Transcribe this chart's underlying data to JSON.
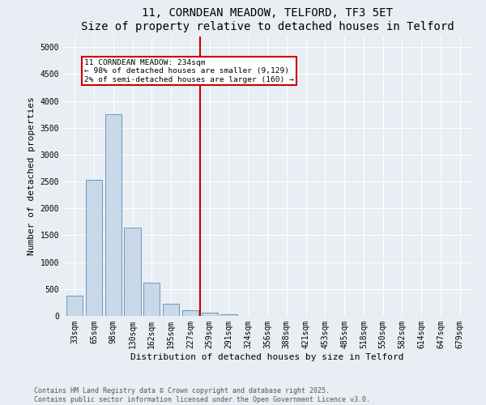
{
  "title": "11, CORNDEAN MEADOW, TELFORD, TF3 5ET",
  "subtitle": "Size of property relative to detached houses in Telford",
  "xlabel": "Distribution of detached houses by size in Telford",
  "ylabel": "Number of detached properties",
  "categories": [
    "33sqm",
    "65sqm",
    "98sqm",
    "130sqm",
    "162sqm",
    "195sqm",
    "227sqm",
    "259sqm",
    "291sqm",
    "324sqm",
    "356sqm",
    "388sqm",
    "421sqm",
    "453sqm",
    "485sqm",
    "518sqm",
    "550sqm",
    "582sqm",
    "614sqm",
    "647sqm",
    "679sqm"
  ],
  "values": [
    380,
    2530,
    3760,
    1650,
    620,
    220,
    100,
    60,
    30,
    0,
    0,
    0,
    0,
    0,
    0,
    0,
    0,
    0,
    0,
    0,
    0
  ],
  "bar_color": "#c8d8e8",
  "bar_edge_color": "#5b8db8",
  "vline_x_index": 6.5,
  "vline_color": "#cc0000",
  "annotation_text": "11 CORNDEAN MEADOW: 234sqm\n← 98% of detached houses are smaller (9,129)\n2% of semi-detached houses are larger (160) →",
  "annotation_box_color": "#cc0000",
  "ylim": [
    0,
    5200
  ],
  "yticks": [
    0,
    500,
    1000,
    1500,
    2000,
    2500,
    3000,
    3500,
    4000,
    4500,
    5000
  ],
  "background_color": "#e8eef4",
  "footer_line1": "Contains HM Land Registry data © Crown copyright and database right 2025.",
  "footer_line2": "Contains public sector information licensed under the Open Government Licence v3.0.",
  "title_fontsize": 10,
  "axis_label_fontsize": 8,
  "tick_fontsize": 7,
  "footer_fontsize": 6
}
